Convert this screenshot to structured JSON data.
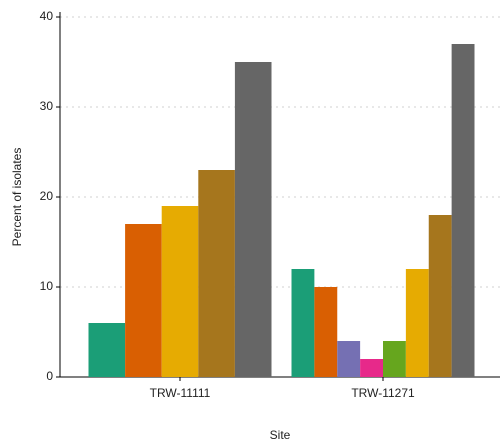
{
  "chart_data": {
    "type": "bar",
    "x_label": "Site",
    "y_label": "Percent of isolates",
    "categories": [
      "TRW-11111",
      "TRW-11271"
    ],
    "series": [
      {
        "color": "#1b9e77",
        "values": [
          6,
          12
        ]
      },
      {
        "color": "#d95f02",
        "values": [
          17,
          10
        ]
      },
      {
        "color": "#7570b3",
        "values": [
          null,
          4
        ]
      },
      {
        "color": "#e7298a",
        "values": [
          null,
          2
        ]
      },
      {
        "color": "#66a61e",
        "values": [
          null,
          4
        ]
      },
      {
        "color": "#e6ab02",
        "values": [
          19,
          12
        ]
      },
      {
        "color": "#a6761d",
        "values": [
          23,
          18
        ]
      },
      {
        "color": "#666666",
        "values": [
          35,
          37
        ]
      }
    ],
    "ylim": [
      0,
      40
    ],
    "yticks": [
      0,
      10,
      20,
      30,
      40
    ],
    "grid": true
  }
}
